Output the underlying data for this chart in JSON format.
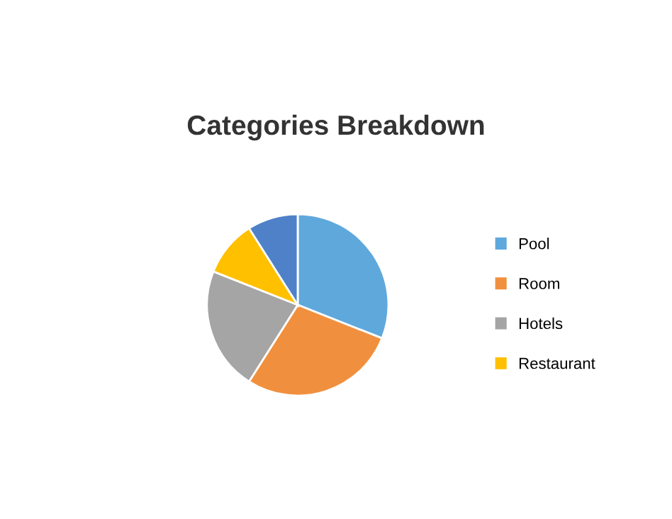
{
  "chart_data": {
    "type": "pie",
    "title": "Categories Breakdown",
    "categories": [
      "Pool",
      "Room",
      "Hotels",
      "Restaurant",
      null
    ],
    "values": [
      31,
      28,
      22,
      10,
      9
    ],
    "colors": [
      "#5fa8dc",
      "#f0903e",
      "#a5a5a5",
      "#ffc000",
      "#4f81c8"
    ],
    "legend": "right"
  }
}
